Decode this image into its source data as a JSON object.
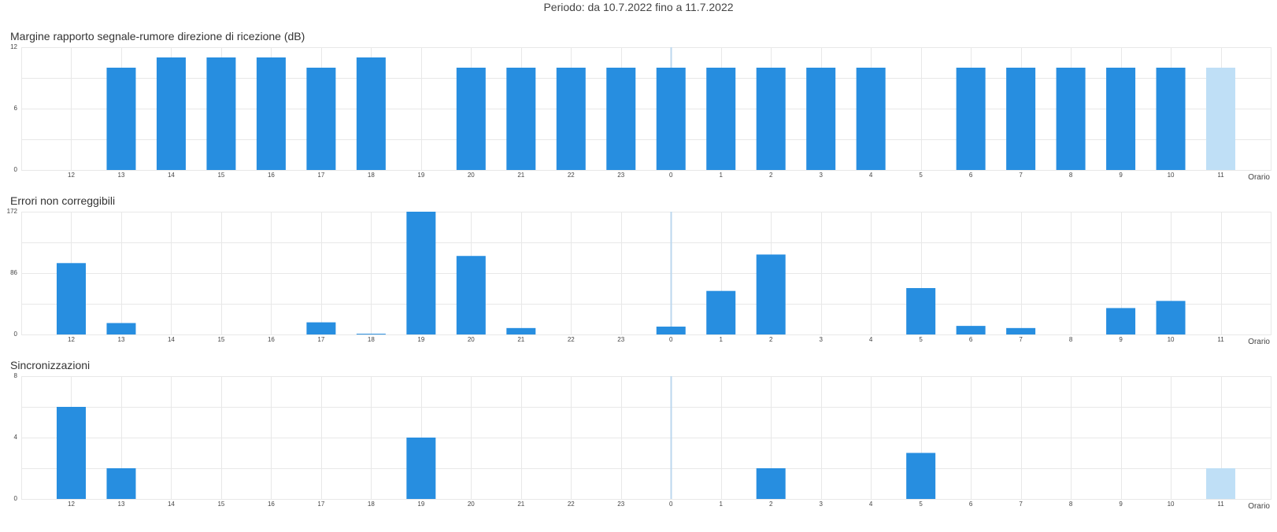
{
  "header": {
    "period": "Periodo: da 10.7.2022 fino a 11.7.2022"
  },
  "colors": {
    "bar": "#278ee0",
    "bar_current": "#bfdff6",
    "grid": "#e8e8e8",
    "midnight_line": "#bcd7ee"
  },
  "chart_data": [
    {
      "type": "bar",
      "title": "Margine rapporto segnale-rumore direzione di ricezione (dB)",
      "xlabel": "Orario",
      "categories": [
        "12",
        "13",
        "14",
        "15",
        "16",
        "17",
        "18",
        "19",
        "20",
        "21",
        "22",
        "23",
        "0",
        "1",
        "2",
        "3",
        "4",
        "5",
        "6",
        "7",
        "8",
        "9",
        "10",
        "11"
      ],
      "values": [
        0,
        10,
        11,
        11,
        11,
        10,
        11,
        0,
        10,
        10,
        10,
        10,
        10,
        10,
        10,
        10,
        10,
        0,
        10,
        10,
        10,
        10,
        10,
        10
      ],
      "ylim": [
        0,
        12
      ],
      "yticks": [
        "0",
        "6",
        "12"
      ],
      "current_bar_index": 23
    },
    {
      "type": "bar",
      "title": "Errori non correggibili",
      "xlabel": "Orario",
      "categories": [
        "12",
        "13",
        "14",
        "15",
        "16",
        "17",
        "18",
        "19",
        "20",
        "21",
        "22",
        "23",
        "0",
        "1",
        "2",
        "3",
        "4",
        "5",
        "6",
        "7",
        "8",
        "9",
        "10",
        "11"
      ],
      "values": [
        100,
        16,
        0,
        0,
        0,
        17,
        1,
        172,
        110,
        9,
        0,
        0,
        11,
        61,
        112,
        0,
        0,
        65,
        12,
        9,
        0,
        37,
        47,
        0
      ],
      "ylim": [
        0,
        172
      ],
      "yticks": [
        "0",
        "86",
        "172"
      ],
      "current_bar_index": 23
    },
    {
      "type": "bar",
      "title": "Sincronizzazioni",
      "xlabel": "Orario",
      "categories": [
        "12",
        "13",
        "14",
        "15",
        "16",
        "17",
        "18",
        "19",
        "20",
        "21",
        "22",
        "23",
        "0",
        "1",
        "2",
        "3",
        "4",
        "5",
        "6",
        "7",
        "8",
        "9",
        "10",
        "11"
      ],
      "values": [
        6,
        2,
        0,
        0,
        0,
        0,
        0,
        4,
        0,
        0,
        0,
        0,
        0,
        0,
        2,
        0,
        0,
        3,
        0,
        0,
        0,
        0,
        0,
        2
      ],
      "ylim": [
        0,
        8
      ],
      "yticks": [
        "0",
        "4",
        "8"
      ],
      "current_bar_index": 23
    }
  ]
}
